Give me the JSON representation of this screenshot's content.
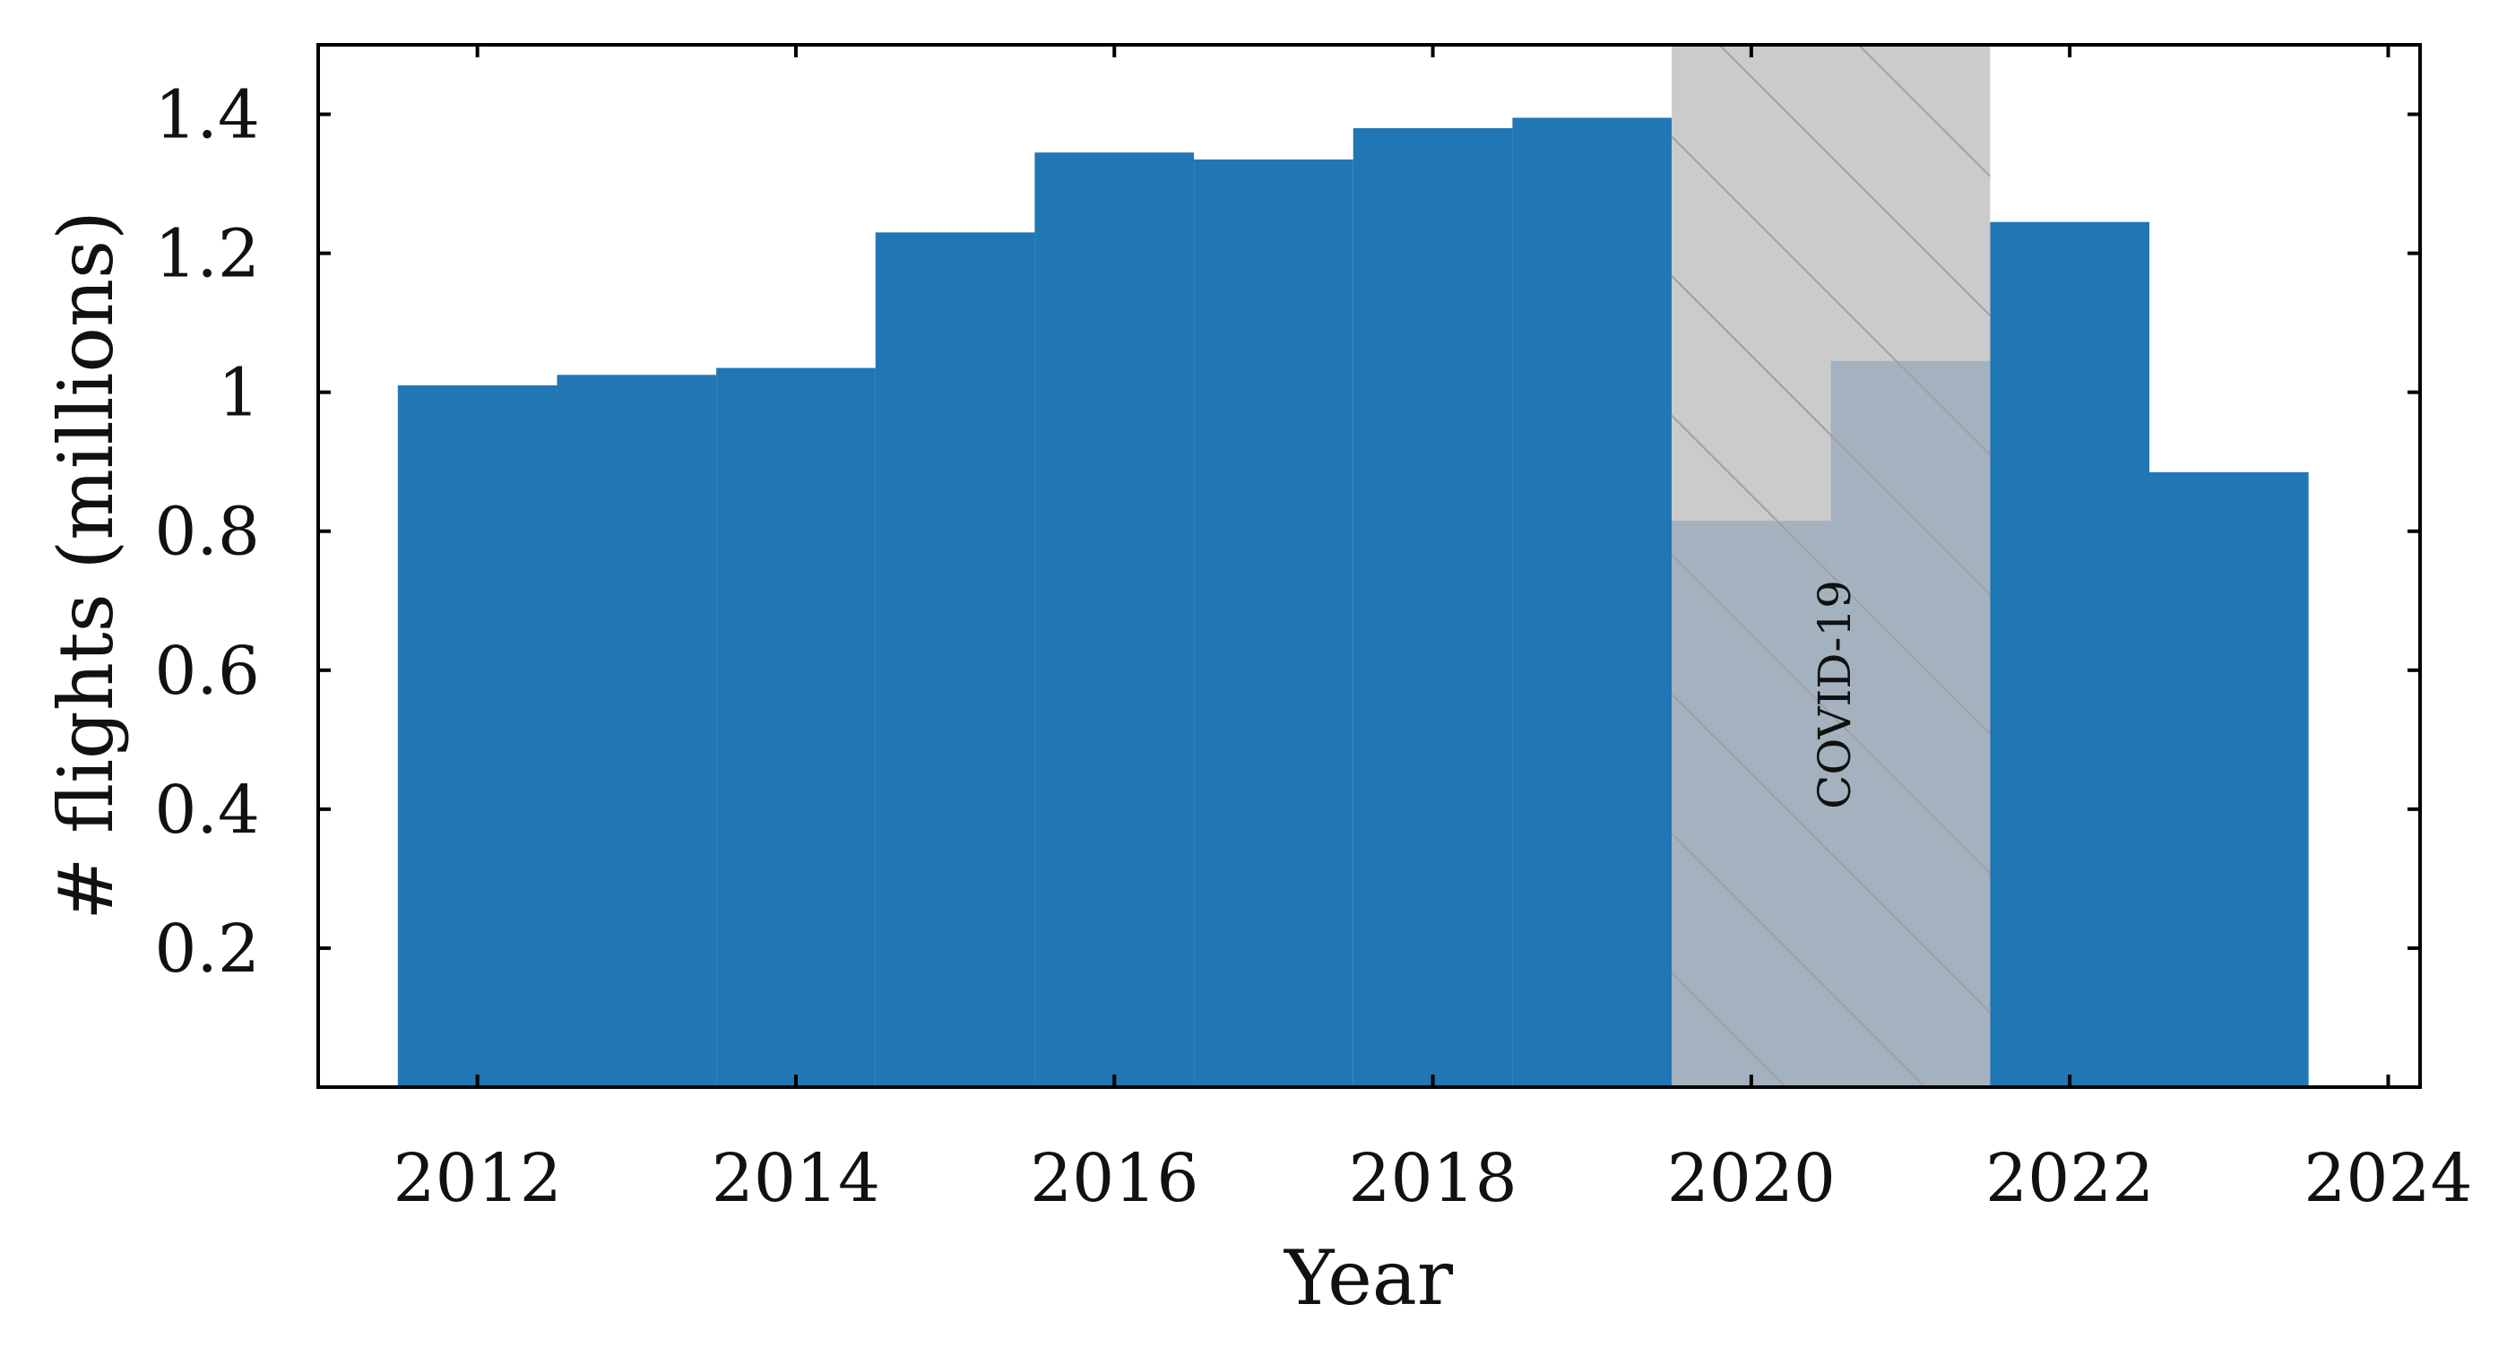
{
  "chart_data": {
    "type": "bar",
    "xlabel": "Year",
    "ylabel": "# flights (millions)",
    "xlim": [
      2011,
      2024.2
    ],
    "ylim": [
      0,
      1.5
    ],
    "x_ticks": [
      2012,
      2014,
      2016,
      2018,
      2020,
      2022,
      2024
    ],
    "x_tick_labels": [
      "2012",
      "2014",
      "2016",
      "2018",
      "2020",
      "2022",
      "2024"
    ],
    "y_ticks": [
      0.2,
      0.4,
      0.6,
      0.8,
      1.0,
      1.2,
      1.4
    ],
    "y_tick_labels": [
      "0.2",
      "0.4",
      "0.6",
      "0.8",
      "1",
      "1.2",
      "1.4"
    ],
    "x": [
      2012,
      2013,
      2014,
      2015,
      2016,
      2017,
      2018,
      2019,
      2020,
      2021,
      2022,
      2023
    ],
    "values": [
      1.01,
      1.025,
      1.035,
      1.23,
      1.345,
      1.335,
      1.38,
      1.395,
      0.815,
      1.045,
      1.245,
      0.885
    ],
    "bar_width": 1,
    "grid": false,
    "annotation": {
      "text": "COVID-19",
      "x_start": 2019.5,
      "x_end": 2021.5,
      "fill": "gray",
      "pattern": "diagonal hatch"
    }
  },
  "colors": {
    "bar": "#2176b4",
    "covid_band": "#bfbfbf",
    "hatch": "#a0a0a0",
    "axis": "#000000"
  }
}
